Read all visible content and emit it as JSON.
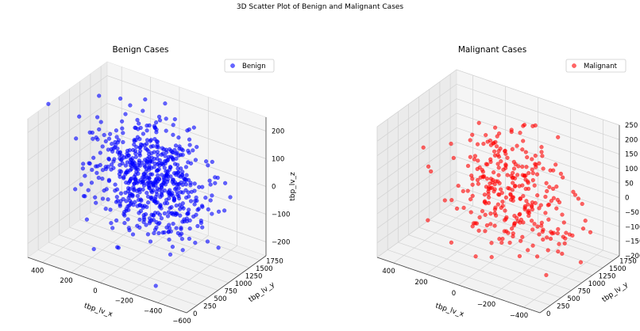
{
  "suptitle": "3D Scatter Plot of Benign and Malignant Cases",
  "colors": {
    "benign": "#0000ff",
    "malignant": "#ff0000",
    "pane": "#f2f2f2",
    "grid": "#d6d6d6"
  },
  "chart_data": [
    {
      "type": "scatter",
      "projection": "3d",
      "title": "Benign Cases",
      "xlabel": "tbp_lv_x",
      "ylabel": "tbp_lv_y",
      "zlabel": "tbp_lv_z",
      "xlim": [
        -600,
        500
      ],
      "ylim": [
        0,
        1900
      ],
      "zlim": [
        -250,
        250
      ],
      "xticks": [
        -600,
        -400,
        -200,
        0,
        200,
        400
      ],
      "yticks": [
        0,
        250,
        500,
        750,
        1000,
        1250,
        1500,
        1750
      ],
      "zticks": [
        -200,
        -100,
        0,
        100,
        200
      ],
      "legend": {
        "placement": "upper-right",
        "entries": [
          "Benign"
        ]
      },
      "grid": true,
      "series": [
        {
          "name": "Benign",
          "color": "#0000ff",
          "alpha": 0.6,
          "point_count": 640,
          "note": "points sampled to approximate the visible cloud",
          "clusters": [
            {
              "x_mean": -50,
              "x_sd": 150,
              "y_mean": 1000,
              "y_sd": 320,
              "z_mean": 40,
              "z_sd": 95,
              "share": 0.78
            },
            {
              "x_mean": -250,
              "x_sd": 120,
              "y_mean": 950,
              "y_sd": 280,
              "z_mean": -20,
              "z_sd": 70,
              "share": 0.14
            },
            {
              "x_mean": 150,
              "x_sd": 110,
              "y_mean": 900,
              "y_sd": 250,
              "z_mean": 70,
              "z_sd": 70,
              "share": 0.08
            }
          ],
          "outliers": [
            {
              "x": -560,
              "y": 900,
              "z": -120
            },
            {
              "x": 380,
              "y": 1000,
              "z": -200
            },
            {
              "x": 150,
              "y": 1600,
              "z": 210
            },
            {
              "x": -300,
              "y": 300,
              "z": -240
            }
          ]
        }
      ]
    },
    {
      "type": "scatter",
      "projection": "3d",
      "title": "Malignant Cases",
      "xlabel": "tbp_lv_x",
      "ylabel": "tbp_lv_y",
      "zlabel": "tbp_lv_z",
      "xlim": [
        -500,
        500
      ],
      "ylim": [
        0,
        1900
      ],
      "zlim": [
        -200,
        250
      ],
      "xticks": [
        -400,
        -200,
        0,
        200,
        400
      ],
      "yticks": [
        0,
        250,
        500,
        750,
        1000,
        1250,
        1500,
        1750
      ],
      "zticks": [
        -200,
        -150,
        -100,
        -50,
        0,
        50,
        100,
        150,
        200,
        250
      ],
      "legend": {
        "placement": "upper-right",
        "entries": [
          "Malignant"
        ]
      },
      "grid": true,
      "series": [
        {
          "name": "Malignant",
          "color": "#ff0000",
          "alpha": 0.6,
          "point_count": 300,
          "note": "points sampled to approximate the visible cloud",
          "clusters": [
            {
              "x_mean": -30,
              "x_sd": 140,
              "y_mean": 1000,
              "y_sd": 320,
              "z_mean": 40,
              "z_sd": 100,
              "share": 0.82
            },
            {
              "x_mean": -280,
              "x_sd": 110,
              "y_mean": 950,
              "y_sd": 260,
              "z_mean": -30,
              "z_sd": 60,
              "share": 0.18
            }
          ],
          "outliers": [
            {
              "x": 420,
              "y": 900,
              "z": -150
            },
            {
              "x": 380,
              "y": 1300,
              "z": 80
            }
          ]
        }
      ]
    }
  ]
}
